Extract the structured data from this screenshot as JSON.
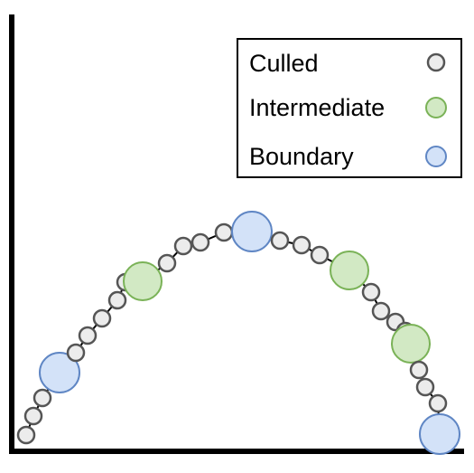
{
  "legend": {
    "items": [
      {
        "label": "Culled",
        "kind": "culled"
      },
      {
        "label": "Intermediate",
        "kind": "intermediate"
      },
      {
        "label": "Boundary",
        "kind": "boundary"
      }
    ]
  },
  "styles": {
    "culled": {
      "fill": "#ececec",
      "stroke": "#555555"
    },
    "intermediate": {
      "fill": "#d2e9c4",
      "stroke": "#7ab257"
    },
    "boundary": {
      "fill": "#d3e2f8",
      "stroke": "#5f86c4"
    }
  },
  "curve": {
    "color": "#000000",
    "points": [
      {
        "kind": "culled"
      },
      {
        "kind": "culled"
      },
      {
        "kind": "culled"
      },
      {
        "kind": "boundary"
      },
      {
        "kind": "culled"
      },
      {
        "kind": "culled"
      },
      {
        "kind": "culled"
      },
      {
        "kind": "culled"
      },
      {
        "kind": "culled"
      },
      {
        "kind": "intermediate"
      },
      {
        "kind": "culled"
      },
      {
        "kind": "culled"
      },
      {
        "kind": "culled"
      },
      {
        "kind": "culled"
      },
      {
        "kind": "boundary"
      },
      {
        "kind": "culled"
      },
      {
        "kind": "culled"
      },
      {
        "kind": "culled"
      },
      {
        "kind": "intermediate"
      },
      {
        "kind": "culled"
      },
      {
        "kind": "culled"
      },
      {
        "kind": "culled"
      },
      {
        "kind": "culled"
      },
      {
        "kind": "intermediate"
      },
      {
        "kind": "culled"
      },
      {
        "kind": "culled"
      },
      {
        "kind": "culled"
      },
      {
        "kind": "boundary"
      }
    ]
  }
}
